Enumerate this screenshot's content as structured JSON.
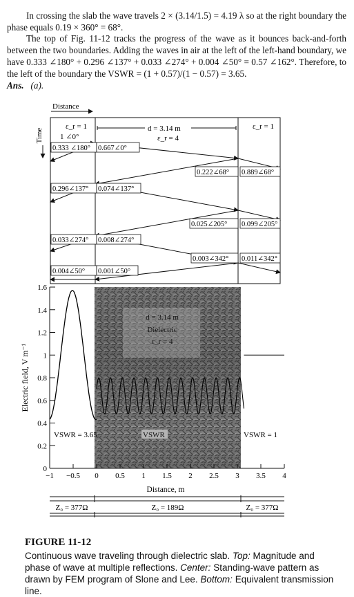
{
  "text": {
    "p1": "In crossing the slab the wave travels 2 × (3.14/1.5) = 4.19 λ so at the right boundary the phase equals 0.19 × 360° = 68°.",
    "p2": "The top of Fig. 11-12 tracks the progress of the wave as it bounces back-and-forth between the two boundaries. Adding the waves in air at the left of the left-hand boundary, we have 0.333 ∠180° + 0.296 ∠137° + 0.033 ∠274° + 0.004 ∠50° = 0.57 ∠162°. Therefore, to the left of the boundary the VSWR = (1 + 0.57)/(1 − 0.57) = 3.65.",
    "ans_label": "Ans.",
    "ans_value": "(a)."
  },
  "diagram": {
    "distance_label": "Distance",
    "time_label": "Time",
    "left_region": "ε_r = 1",
    "incident": "1 ∠0°",
    "slab_width": "d = 3.14 m",
    "slab_eps": "ε_r = 4",
    "right_region": "ε_r = 1",
    "boxes": [
      "0.333 ∠180°",
      "0.667∠0°",
      "0.222∠68°",
      "0.889∠68°",
      "0.296∠137°",
      "0.074∠137°",
      "0.025∠205°",
      "0.099∠205°",
      "0.033∠274°",
      "0.008∠274°",
      "0.003∠342°",
      "0.011∠342°",
      "0.004∠50°",
      "0.001∠50°"
    ]
  },
  "chart_data": {
    "type": "line",
    "title": "",
    "xlabel": "Distance, m",
    "ylabel": "Electric field, V m⁻¹",
    "xlim": [
      -1,
      4
    ],
    "ylim": [
      0,
      1.6
    ],
    "xticks": [
      "−1",
      "−0.5",
      "0",
      "0.5",
      "1",
      "1.5",
      "2",
      "2.5",
      "3",
      "3.5",
      "4"
    ],
    "yticks": [
      "0",
      "0.2",
      "0.4",
      "0.6",
      "0.8",
      "1",
      "1.2",
      "1.4",
      "1.6"
    ],
    "slab_start": 0,
    "slab_end": 3.14,
    "slab_labels": [
      "d = 3.14 m",
      "Dielectric",
      "ε_r = 4"
    ],
    "vswr_left": "VSWR = 3.65",
    "vswr_mid": "VSWR",
    "vswr_right": "VSWR = 1",
    "left_wave": {
      "min": 0.43,
      "max": 1.57,
      "period": 1.0
    },
    "slab_wave": {
      "min": 0.48,
      "max": 0.8,
      "period": 0.25
    },
    "right_wave": {
      "value": 1.0
    }
  },
  "tline": {
    "z_left": "Z₀ = 377Ω",
    "z_mid": "Z₀ = 189Ω",
    "z_right": "Z₀ = 377Ω"
  },
  "caption": {
    "title": "FIGURE 11-12",
    "l1": "Continuous wave traveling through dielectric slab.",
    "top_lbl": "Top:",
    "l2": "Magnitude and phase of wave at multiple reflections.",
    "center_lbl": "Center:",
    "l3": "Standing-wave pattern as drawn by FEM program of Slone and Lee.",
    "bottom_lbl": "Bottom:",
    "l4": "Equivalent transmission line."
  }
}
